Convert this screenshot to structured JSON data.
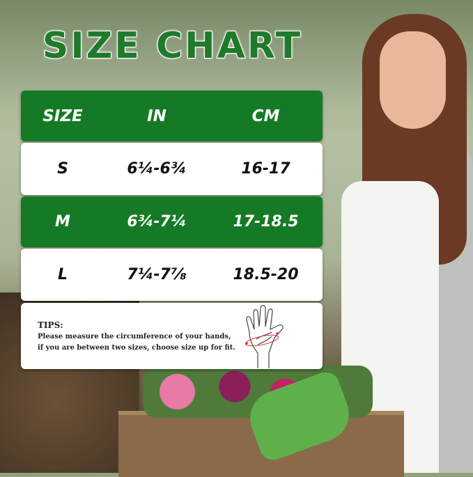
{
  "title": "SIZE CHART",
  "table": {
    "headers": [
      "SIZE",
      "IN",
      "CM"
    ],
    "rows": [
      {
        "size": "S",
        "in": "6¼-6¾",
        "cm": "16-17"
      },
      {
        "size": "M",
        "in": "6¾-7¼",
        "cm": "17-18.5"
      },
      {
        "size": "L",
        "in": "7¼-7⅞",
        "cm": "18.5-20"
      }
    ]
  },
  "tips": {
    "title": "TIPS:",
    "line1": "Please measure the circumference of your hands,",
    "line2": "if you are between two sizes, choose size up for fit."
  },
  "colors": {
    "green": "#157a25",
    "white": "#ffffff"
  }
}
